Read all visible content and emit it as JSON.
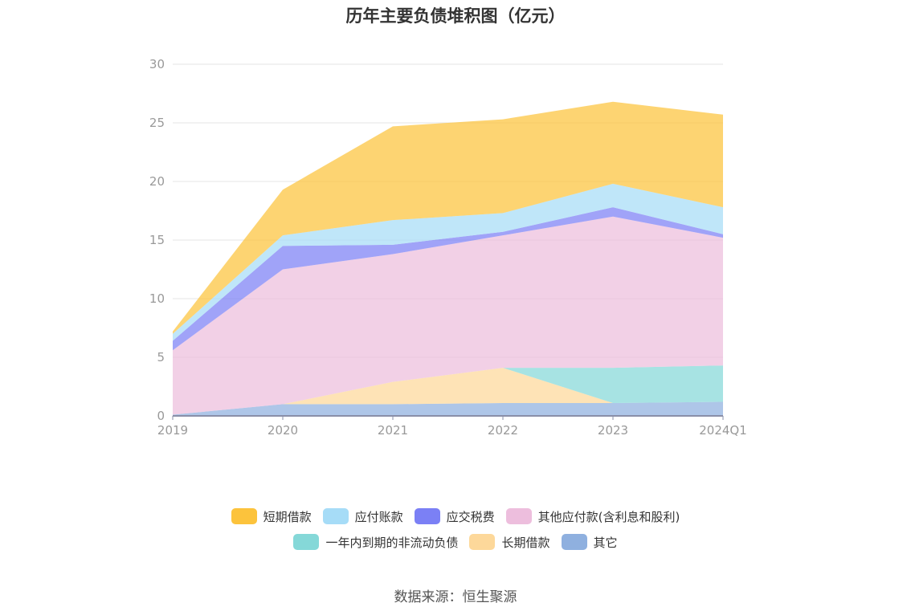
{
  "title": "历年主要负债堆积图（亿元）",
  "source": "数据来源：恒生聚源",
  "chart_data": {
    "type": "area",
    "stacked": true,
    "categories": [
      "2019",
      "2020",
      "2021",
      "2022",
      "2023",
      "2024Q1"
    ],
    "ylim": [
      0,
      30
    ],
    "yticks": [
      0,
      5,
      10,
      15,
      20,
      25,
      30
    ],
    "grid": true,
    "legend_position": "bottom",
    "series": [
      {
        "name": "其它",
        "color": "#8fb0df",
        "values": [
          0.1,
          1.0,
          1.0,
          1.1,
          1.1,
          1.2
        ]
      },
      {
        "name": "长期借款",
        "color": "#fdd89a",
        "values": [
          0.0,
          0.0,
          1.9,
          3.0,
          0.0,
          0.0
        ]
      },
      {
        "name": "一年内到期的非流动负债",
        "color": "#85d8d8",
        "values": [
          0.0,
          0.0,
          0.0,
          0.0,
          3.0,
          3.1
        ]
      },
      {
        "name": "其他应付款(含利息和股利)",
        "color": "#edbedd",
        "values": [
          5.5,
          11.5,
          10.9,
          11.3,
          12.9,
          10.9
        ]
      },
      {
        "name": "应交税费",
        "color": "#7b80f5",
        "values": [
          0.8,
          2.0,
          0.8,
          0.3,
          0.8,
          0.3
        ]
      },
      {
        "name": "应付账款",
        "color": "#a6dcf7",
        "values": [
          0.6,
          0.9,
          2.1,
          1.6,
          2.0,
          2.3
        ]
      },
      {
        "name": "短期借款",
        "color": "#fcc33c",
        "values": [
          0.2,
          3.9,
          8.0,
          8.0,
          7.0,
          7.9
        ]
      }
    ]
  },
  "legend": {
    "row1": [
      {
        "label": "短期借款",
        "color": "#fcc33c"
      },
      {
        "label": "应付账款",
        "color": "#a6dcf7"
      },
      {
        "label": "应交税费",
        "color": "#7b80f5"
      },
      {
        "label": "其他应付款(含利息和股利)",
        "color": "#edbedd"
      }
    ],
    "row2": [
      {
        "label": "一年内到期的非流动负债",
        "color": "#85d8d8"
      },
      {
        "label": "长期借款",
        "color": "#fdd89a"
      },
      {
        "label": "其它",
        "color": "#8fb0df"
      }
    ]
  }
}
